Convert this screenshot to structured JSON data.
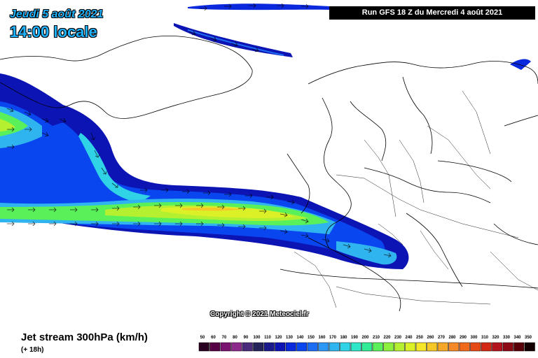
{
  "header": {
    "date": "Jeudi 5 août 2021",
    "local_time": "14:00 locale",
    "run_info": "Run GFS 18 Z du Mercredi 4 août 2021"
  },
  "copyright": "Copyright © 2021 Meteociel.fr",
  "footer": {
    "product": "Jet stream 300hPa (km/h)",
    "lead_time": "(+ 18h)"
  },
  "legend": {
    "unit": "km/h",
    "levels": [
      "50",
      "60",
      "70",
      "80",
      "90",
      "100",
      "110",
      "120",
      "130",
      "140",
      "150",
      "160",
      "170",
      "180",
      "190",
      "200",
      "210",
      "220",
      "230",
      "240",
      "250",
      "260",
      "270",
      "280",
      "290",
      "300",
      "310",
      "320",
      "330",
      "340",
      "350"
    ],
    "colors": [
      "#2a0020",
      "#560046",
      "#7a1270",
      "#8c2a8c",
      "#4a2a7a",
      "#24245a",
      "#1a1a8c",
      "#0c14b4",
      "#0a28dc",
      "#0a46f0",
      "#1e6ef5",
      "#2c96f5",
      "#30b4f0",
      "#30d2e6",
      "#2ee6c8",
      "#32eb96",
      "#5af05a",
      "#8cf03c",
      "#b4f030",
      "#dcf028",
      "#f5e628",
      "#f5c828",
      "#f5a828",
      "#f58828",
      "#f06a1e",
      "#e64a14",
      "#d22814",
      "#b4141e",
      "#8c0a14",
      "#5a0008",
      "#140000"
    ]
  }
}
